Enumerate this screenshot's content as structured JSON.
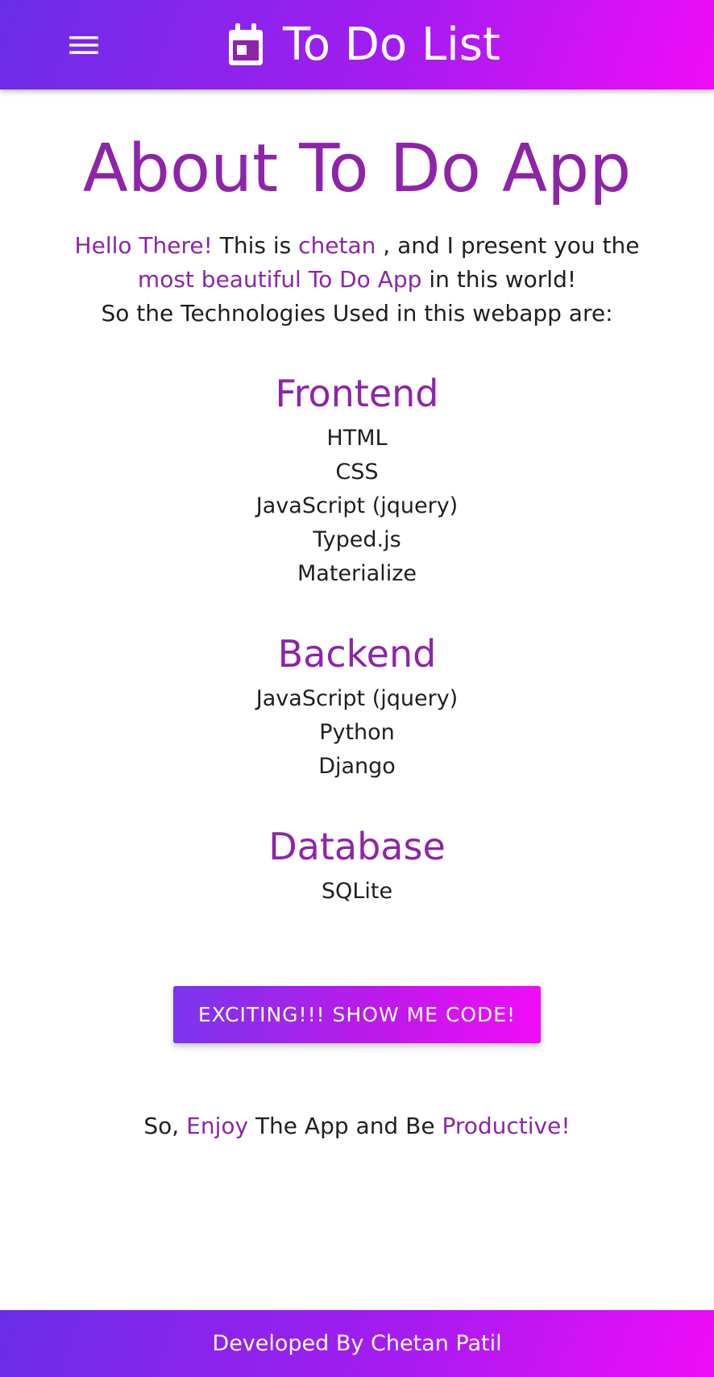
{
  "theme": {
    "accent": "#8e24aa",
    "nav_gradient": [
      "#6a2ee8",
      "#a41cf0",
      "#f10cf7"
    ],
    "text": "#1f1f1f",
    "white": "#ffffff"
  },
  "nav": {
    "menu_icon": "menu-icon",
    "brand_icon": "calendar-icon",
    "title": "To Do List"
  },
  "page": {
    "title": "About To Do App",
    "intro": {
      "greeting": "Hello There!",
      "this_is": "This is",
      "name": "chetan",
      "present_text": ", and I present you the",
      "highlight": "most beautiful To Do App",
      "world_text": "in this world!",
      "technologies_text": "So the Technologies Used in this webapp are:"
    },
    "sections": [
      {
        "title": "Frontend",
        "items": [
          "HTML",
          "CSS",
          "JavaScript (jquery)",
          "Typed.js",
          "Materialize"
        ]
      },
      {
        "title": "Backend",
        "items": [
          "JavaScript (jquery)",
          "Python",
          "Django"
        ]
      },
      {
        "title": "Database",
        "items": [
          "SQLite"
        ]
      }
    ],
    "button_label": "EXCITING!!! SHOW ME CODE!",
    "closing": {
      "prefix": "So,",
      "enjoy": "Enjoy",
      "middle": "The App and Be",
      "productive": "Productive!"
    }
  },
  "footer": {
    "text": "Developed By Chetan Patil"
  }
}
